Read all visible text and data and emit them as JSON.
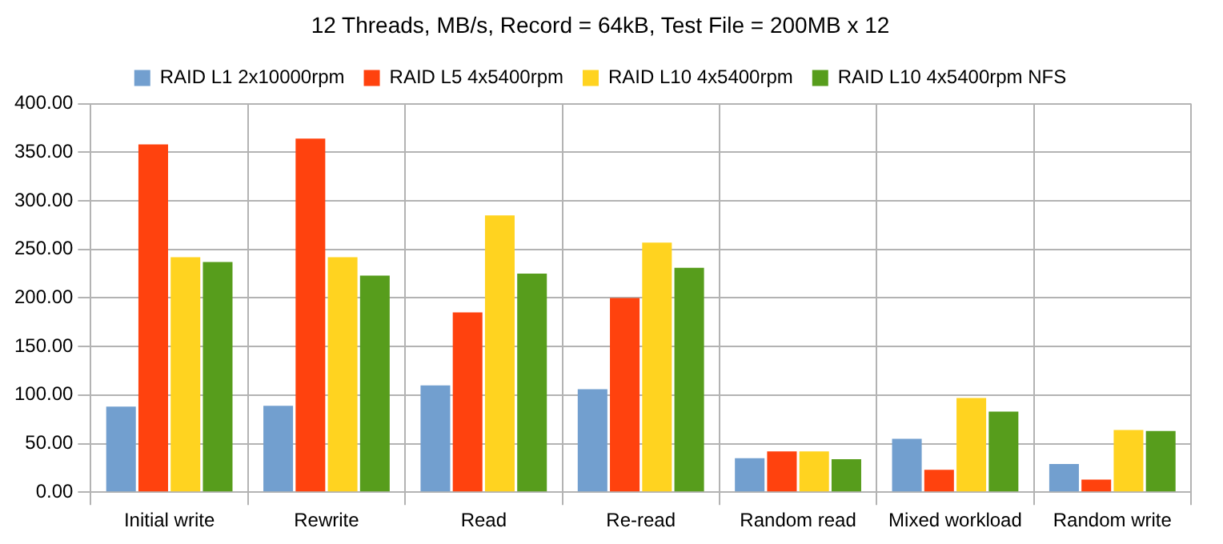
{
  "chart_data": {
    "type": "bar",
    "title": "12 Threads, MB/s, Record = 64kB, Test File = 200MB x 12",
    "categories": [
      "Initial write",
      "Rewrite",
      "Read",
      "Re-read",
      "Random read",
      "Mixed workload",
      "Random write"
    ],
    "series": [
      {
        "name": "RAID L1 2x10000rpm",
        "color": "#729fcf",
        "values": [
          88,
          89,
          110,
          106,
          35,
          55,
          29
        ]
      },
      {
        "name": "RAID L5 4x5400rpm",
        "color": "#ff420e",
        "values": [
          358,
          364,
          185,
          200,
          42,
          23,
          13
        ]
      },
      {
        "name": "RAID L10 4x5400rpm",
        "color": "#ffd320",
        "values": [
          242,
          242,
          285,
          257,
          42,
          97,
          64
        ]
      },
      {
        "name": "RAID L10 4x5400rpm NFS",
        "color": "#579d1c",
        "values": [
          237,
          223,
          225,
          231,
          34,
          83,
          63
        ]
      }
    ],
    "ylim": [
      0,
      400
    ],
    "yticks": [
      {
        "value": 0,
        "label": "0.00"
      },
      {
        "value": 50,
        "label": "50.00"
      },
      {
        "value": 100,
        "label": "100.00"
      },
      {
        "value": 150,
        "label": "150.00"
      },
      {
        "value": 200,
        "label": "200.00"
      },
      {
        "value": 250,
        "label": "250.00"
      },
      {
        "value": 300,
        "label": "300.00"
      },
      {
        "value": 350,
        "label": "350.00"
      },
      {
        "value": 400,
        "label": "400.00"
      }
    ],
    "grid": true,
    "legend": "top"
  }
}
